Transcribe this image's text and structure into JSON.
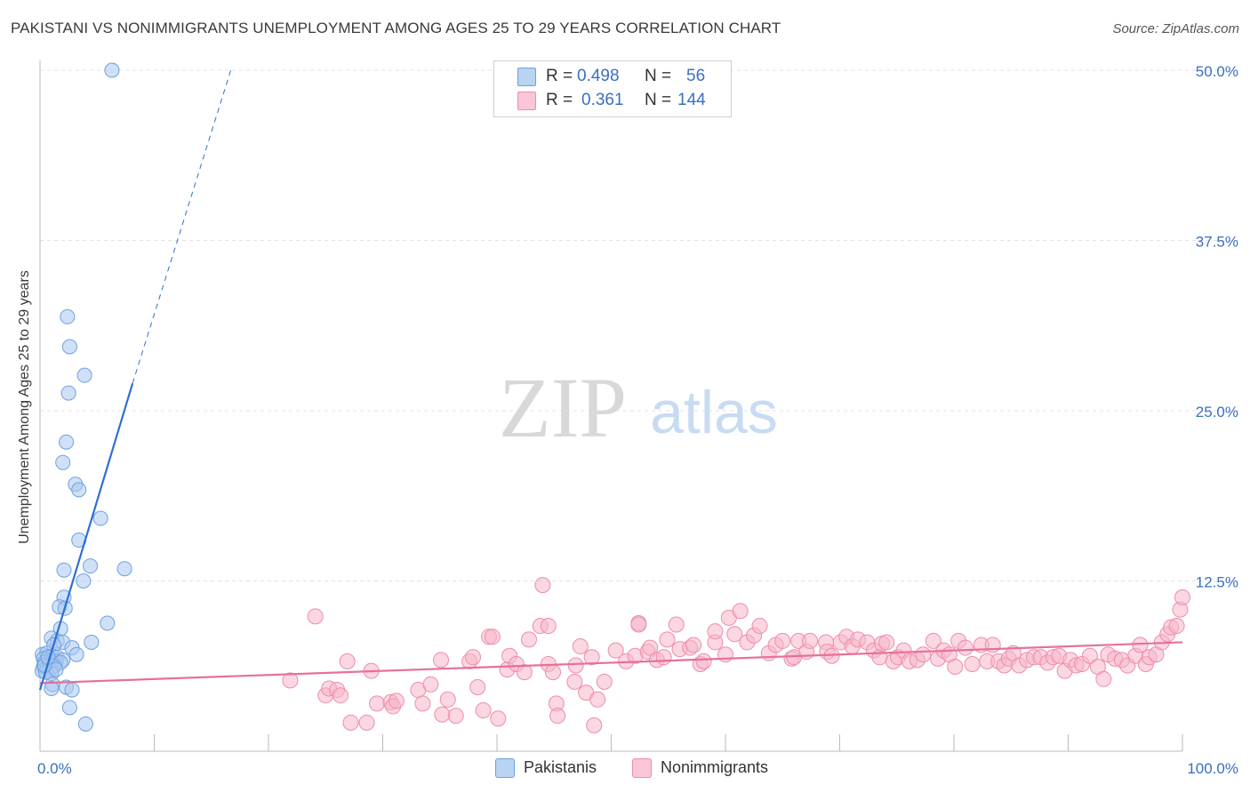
{
  "title": "PAKISTANI VS NONIMMIGRANTS UNEMPLOYMENT AMONG AGES 25 TO 29 YEARS CORRELATION CHART",
  "source": "Source: ZipAtlas.com",
  "watermark": {
    "zip": "ZIP",
    "atlas": "atlas"
  },
  "legend": {
    "rows": [
      {
        "r_label": "R =",
        "r_value": "0.498",
        "n_label": "N =",
        "n_value": "56"
      },
      {
        "r_label": "R =",
        "r_value": "0.361",
        "n_label": "N =",
        "n_value": "144"
      }
    ]
  },
  "bottom_legend": {
    "series1": "Pakistanis",
    "series2": "Nonimmigrants"
  },
  "colors": {
    "blue_fill": "#a9c8f0",
    "blue_stroke": "#6fa0e0",
    "blue_line": "#2f6fd0",
    "pink_fill": "#f6b6c8",
    "pink_stroke": "#ef8cab",
    "pink_line": "#e5709a",
    "axis_text": "#3a6fc0"
  },
  "chart_data": {
    "type": "scatter",
    "title": "PAKISTANI VS NONIMMIGRANTS UNEMPLOYMENT AMONG AGES 25 TO 29 YEARS CORRELATION CHART",
    "xlabel": "",
    "ylabel": "Unemployment Among Ages 25 to 29 years",
    "xlim": [
      0,
      100
    ],
    "ylim": [
      0,
      51
    ],
    "x_tick_labels": [
      {
        "value": 0,
        "label": "0.0%"
      },
      {
        "value": 100,
        "label": "100.0%"
      }
    ],
    "y_tick_labels": [
      {
        "value": 12.5,
        "label": "12.5%"
      },
      {
        "value": 25,
        "label": "25.0%"
      },
      {
        "value": 37.5,
        "label": "37.5%"
      },
      {
        "value": 50,
        "label": "50.0%"
      }
    ],
    "series": [
      {
        "name": "Pakistanis",
        "R": 0.498,
        "N": 56,
        "trend": {
          "x0": 0,
          "y0": 4.5,
          "x1": 8.1,
          "y1": 27.0,
          "dash_x1": 16.7,
          "dash_y1": 50.0
        },
        "points": [
          [
            6.3,
            50.0
          ],
          [
            2.4,
            31.9
          ],
          [
            2.6,
            29.7
          ],
          [
            3.9,
            27.6
          ],
          [
            2.5,
            26.3
          ],
          [
            2.3,
            22.7
          ],
          [
            2.0,
            21.2
          ],
          [
            3.1,
            19.6
          ],
          [
            3.4,
            19.2
          ],
          [
            5.3,
            17.1
          ],
          [
            3.4,
            15.5
          ],
          [
            2.1,
            13.3
          ],
          [
            4.4,
            13.6
          ],
          [
            7.4,
            13.4
          ],
          [
            3.8,
            12.5
          ],
          [
            2.1,
            11.3
          ],
          [
            1.7,
            10.6
          ],
          [
            2.2,
            10.5
          ],
          [
            5.9,
            9.4
          ],
          [
            1.8,
            9.0
          ],
          [
            1.0,
            8.3
          ],
          [
            1.5,
            8.1
          ],
          [
            2.0,
            8.0
          ],
          [
            4.5,
            8.0
          ],
          [
            1.2,
            7.8
          ],
          [
            2.8,
            7.6
          ],
          [
            3.2,
            7.1
          ],
          [
            0.2,
            7.1
          ],
          [
            0.6,
            7.2
          ],
          [
            1.1,
            7.0
          ],
          [
            1.5,
            6.9
          ],
          [
            0.3,
            6.8
          ],
          [
            0.7,
            6.7
          ],
          [
            0.9,
            6.6
          ],
          [
            1.4,
            6.6
          ],
          [
            2.0,
            6.7
          ],
          [
            0.4,
            6.5
          ],
          [
            0.8,
            6.4
          ],
          [
            1.3,
            6.3
          ],
          [
            1.8,
            6.5
          ],
          [
            0.3,
            6.2
          ],
          [
            0.6,
            6.1
          ],
          [
            0.9,
            6.0
          ],
          [
            1.2,
            6.2
          ],
          [
            0.2,
            5.9
          ],
          [
            0.5,
            5.8
          ],
          [
            1.0,
            5.7
          ],
          [
            1.4,
            6.0
          ],
          [
            0.4,
            6.3
          ],
          [
            0.7,
            6.9
          ],
          [
            1.1,
            4.9
          ],
          [
            1.0,
            4.6
          ],
          [
            2.3,
            4.7
          ],
          [
            2.8,
            4.5
          ],
          [
            2.6,
            3.2
          ],
          [
            4.0,
            2.0
          ]
        ]
      },
      {
        "name": "Nonimmigrants",
        "R": 0.361,
        "N": 144,
        "trend": {
          "x0": 0,
          "y0": 5.0,
          "x1": 100,
          "y1": 8.0
        },
        "points": [
          [
            21.9,
            5.2
          ],
          [
            24.1,
            9.9
          ],
          [
            25.0,
            4.1
          ],
          [
            25.3,
            4.6
          ],
          [
            26.0,
            4.5
          ],
          [
            26.3,
            4.1
          ],
          [
            26.9,
            6.6
          ],
          [
            27.2,
            2.1
          ],
          [
            28.6,
            2.1
          ],
          [
            29.0,
            5.9
          ],
          [
            29.5,
            3.5
          ],
          [
            30.7,
            3.6
          ],
          [
            30.9,
            3.3
          ],
          [
            31.2,
            3.7
          ],
          [
            33.1,
            4.5
          ],
          [
            33.5,
            3.5
          ],
          [
            34.2,
            4.9
          ],
          [
            35.1,
            6.7
          ],
          [
            35.2,
            2.7
          ],
          [
            35.7,
            3.8
          ],
          [
            36.4,
            2.6
          ],
          [
            37.6,
            6.6
          ],
          [
            37.9,
            6.9
          ],
          [
            38.3,
            4.7
          ],
          [
            38.8,
            3.0
          ],
          [
            39.3,
            8.4
          ],
          [
            39.6,
            8.4
          ],
          [
            40.1,
            2.4
          ],
          [
            40.9,
            6.0
          ],
          [
            41.1,
            7.0
          ],
          [
            41.7,
            6.4
          ],
          [
            42.4,
            5.8
          ],
          [
            42.8,
            8.2
          ],
          [
            44.0,
            12.2
          ],
          [
            43.8,
            9.2
          ],
          [
            44.5,
            9.2
          ],
          [
            44.5,
            6.4
          ],
          [
            44.9,
            5.8
          ],
          [
            45.2,
            3.5
          ],
          [
            45.3,
            2.6
          ],
          [
            46.8,
            5.1
          ],
          [
            46.9,
            6.3
          ],
          [
            47.3,
            7.7
          ],
          [
            47.8,
            4.3
          ],
          [
            48.3,
            6.9
          ],
          [
            48.5,
            1.9
          ],
          [
            48.8,
            3.8
          ],
          [
            49.4,
            5.1
          ],
          [
            50.4,
            7.4
          ],
          [
            51.3,
            6.6
          ],
          [
            52.1,
            7.0
          ],
          [
            52.4,
            9.4
          ],
          [
            52.4,
            9.3
          ],
          [
            53.2,
            7.3
          ],
          [
            53.4,
            7.6
          ],
          [
            54.0,
            6.7
          ],
          [
            54.6,
            6.9
          ],
          [
            54.9,
            8.2
          ],
          [
            55.7,
            9.3
          ],
          [
            56.0,
            7.5
          ],
          [
            56.9,
            7.6
          ],
          [
            57.2,
            7.8
          ],
          [
            57.8,
            6.4
          ],
          [
            58.1,
            6.6
          ],
          [
            59.1,
            8.0
          ],
          [
            59.1,
            8.8
          ],
          [
            60.0,
            7.1
          ],
          [
            60.8,
            8.6
          ],
          [
            60.3,
            9.8
          ],
          [
            61.3,
            10.3
          ],
          [
            61.9,
            8.0
          ],
          [
            62.5,
            8.5
          ],
          [
            63.0,
            9.2
          ],
          [
            63.8,
            7.2
          ],
          [
            64.4,
            7.8
          ],
          [
            65.0,
            8.1
          ],
          [
            65.8,
            6.8
          ],
          [
            66.0,
            6.9
          ],
          [
            66.4,
            8.1
          ],
          [
            67.1,
            7.3
          ],
          [
            67.4,
            8.1
          ],
          [
            68.8,
            8.0
          ],
          [
            68.9,
            7.3
          ],
          [
            69.3,
            7.0
          ],
          [
            70.1,
            8.0
          ],
          [
            70.6,
            8.4
          ],
          [
            71.1,
            7.7
          ],
          [
            71.6,
            8.2
          ],
          [
            72.4,
            8.0
          ],
          [
            73.0,
            7.4
          ],
          [
            73.5,
            6.9
          ],
          [
            73.7,
            7.9
          ],
          [
            74.1,
            8.0
          ],
          [
            74.7,
            6.6
          ],
          [
            75.1,
            6.9
          ],
          [
            75.6,
            7.4
          ],
          [
            76.1,
            6.6
          ],
          [
            76.8,
            6.7
          ],
          [
            77.3,
            7.1
          ],
          [
            78.2,
            8.1
          ],
          [
            78.6,
            6.8
          ],
          [
            79.1,
            7.4
          ],
          [
            79.6,
            7.1
          ],
          [
            80.1,
            6.2
          ],
          [
            80.4,
            8.1
          ],
          [
            81.0,
            7.6
          ],
          [
            81.6,
            6.4
          ],
          [
            82.4,
            7.8
          ],
          [
            82.9,
            6.6
          ],
          [
            83.4,
            7.8
          ],
          [
            83.9,
            6.6
          ],
          [
            84.4,
            6.3
          ],
          [
            84.8,
            6.8
          ],
          [
            85.2,
            7.2
          ],
          [
            85.7,
            6.3
          ],
          [
            86.4,
            6.7
          ],
          [
            87.0,
            6.9
          ],
          [
            87.6,
            6.9
          ],
          [
            88.2,
            6.5
          ],
          [
            88.7,
            6.9
          ],
          [
            89.2,
            7.0
          ],
          [
            89.7,
            5.9
          ],
          [
            90.2,
            6.7
          ],
          [
            90.7,
            6.3
          ],
          [
            91.2,
            6.4
          ],
          [
            91.9,
            7.0
          ],
          [
            92.6,
            6.2
          ],
          [
            93.1,
            5.3
          ],
          [
            93.5,
            7.1
          ],
          [
            94.1,
            6.8
          ],
          [
            94.7,
            6.7
          ],
          [
            95.2,
            6.3
          ],
          [
            95.9,
            7.0
          ],
          [
            96.3,
            7.8
          ],
          [
            96.8,
            6.4
          ],
          [
            97.1,
            6.9
          ],
          [
            97.7,
            7.1
          ],
          [
            98.2,
            8.0
          ],
          [
            98.7,
            8.6
          ],
          [
            99.0,
            9.1
          ],
          [
            99.5,
            9.2
          ],
          [
            99.8,
            10.4
          ],
          [
            100.0,
            11.3
          ]
        ]
      }
    ]
  }
}
